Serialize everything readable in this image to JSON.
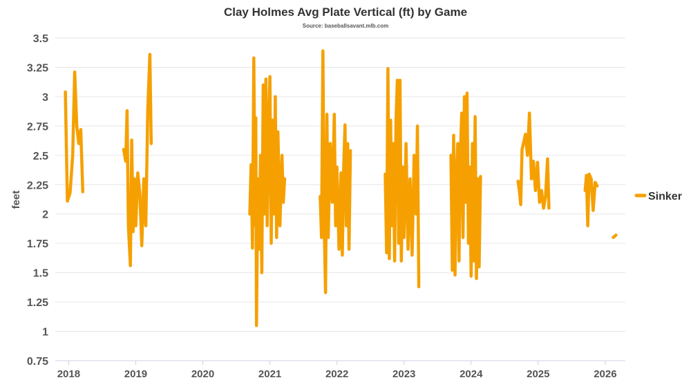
{
  "chart_data": {
    "type": "line",
    "title": "Clay Holmes Avg Plate Vertical (ft) by Game",
    "subtitle": "Source: baseballsavant.mlb.com",
    "xlabel": "",
    "ylabel": "feet",
    "ylim": [
      0.75,
      3.5
    ],
    "y_ticks": [
      "0.75",
      "1",
      "1.25",
      "1.5",
      "1.75",
      "2",
      "2.25",
      "2.5",
      "2.75",
      "3",
      "3.25",
      "3.5"
    ],
    "xlim": [
      2017.8,
      2026.3
    ],
    "x_ticks": [
      "2018",
      "2019",
      "2020",
      "2021",
      "2022",
      "2023",
      "2024",
      "2025",
      "2026"
    ],
    "grid": true,
    "legend_position": "right",
    "colors": {
      "series": "#f5a000",
      "grid": "#e6e6e6",
      "text": "#555555"
    },
    "series": [
      {
        "name": "Sinker",
        "segments": [
          [
            [
              2017.95,
              3.04
            ],
            [
              2017.98,
              2.11
            ],
            [
              2018.02,
              2.18
            ],
            [
              2018.06,
              2.5
            ],
            [
              2018.09,
              3.21
            ],
            [
              2018.12,
              2.75
            ],
            [
              2018.15,
              2.6
            ],
            [
              2018.18,
              2.72
            ],
            [
              2018.21,
              2.19
            ]
          ],
          [
            [
              2018.82,
              2.55
            ],
            [
              2018.85,
              2.45
            ],
            [
              2018.87,
              2.88
            ],
            [
              2018.89,
              1.9
            ],
            [
              2018.92,
              1.56
            ],
            [
              2018.94,
              2.63
            ],
            [
              2018.96,
              1.85
            ],
            [
              2018.98,
              2.3
            ],
            [
              2019.0,
              1.9
            ],
            [
              2019.03,
              2.35
            ],
            [
              2019.06,
              2.18
            ],
            [
              2019.09,
              1.73
            ],
            [
              2019.12,
              2.3
            ],
            [
              2019.15,
              1.9
            ],
            [
              2019.18,
              2.9
            ],
            [
              2019.21,
              3.36
            ],
            [
              2019.23,
              2.6
            ]
          ],
          [
            [
              2020.7,
              2.0
            ],
            [
              2020.72,
              2.42
            ],
            [
              2020.74,
              1.71
            ],
            [
              2020.76,
              3.33
            ],
            [
              2020.78,
              1.9
            ],
            [
              2020.79,
              2.82
            ],
            [
              2020.8,
              1.05
            ],
            [
              2020.82,
              2.3
            ],
            [
              2020.84,
              1.7
            ],
            [
              2020.86,
              2.5
            ],
            [
              2020.88,
              1.5
            ],
            [
              2020.9,
              3.1
            ],
            [
              2020.92,
              2.0
            ],
            [
              2020.94,
              3.15
            ],
            [
              2020.96,
              1.9
            ],
            [
              2020.98,
              2.7
            ],
            [
              2021.0,
              3.17
            ],
            [
              2021.02,
              1.75
            ],
            [
              2021.04,
              2.8
            ],
            [
              2021.06,
              2.0
            ],
            [
              2021.08,
              3.0
            ],
            [
              2021.1,
              1.8
            ],
            [
              2021.12,
              2.7
            ],
            [
              2021.15,
              1.9
            ],
            [
              2021.18,
              2.5
            ],
            [
              2021.2,
              2.1
            ],
            [
              2021.22,
              2.3
            ]
          ],
          [
            [
              2021.75,
              2.15
            ],
            [
              2021.77,
              1.8
            ],
            [
              2021.79,
              3.39
            ],
            [
              2021.81,
              1.9
            ],
            [
              2021.83,
              1.33
            ],
            [
              2021.85,
              2.85
            ],
            [
              2021.87,
              1.8
            ],
            [
              2021.9,
              2.6
            ],
            [
              2021.93,
              2.1
            ],
            [
              2021.96,
              2.85
            ],
            [
              2021.98,
              1.9
            ],
            [
              2022.0,
              2.4
            ],
            [
              2022.03,
              1.7
            ],
            [
              2022.06,
              2.35
            ],
            [
              2022.08,
              1.65
            ],
            [
              2022.1,
              2.4
            ],
            [
              2022.12,
              2.76
            ],
            [
              2022.14,
              1.9
            ],
            [
              2022.16,
              2.6
            ],
            [
              2022.18,
              1.7
            ],
            [
              2022.2,
              2.54
            ]
          ],
          [
            [
              2022.72,
              2.34
            ],
            [
              2022.74,
              1.67
            ],
            [
              2022.76,
              3.24
            ],
            [
              2022.78,
              1.62
            ],
            [
              2022.8,
              2.8
            ],
            [
              2022.82,
              1.9
            ],
            [
              2022.84,
              2.6
            ],
            [
              2022.86,
              1.6
            ],
            [
              2022.88,
              2.8
            ],
            [
              2022.9,
              3.14
            ],
            [
              2022.92,
              1.75
            ],
            [
              2022.94,
              3.14
            ],
            [
              2022.96,
              1.6
            ],
            [
              2022.98,
              2.4
            ],
            [
              2023.0,
              1.8
            ],
            [
              2023.03,
              2.6
            ],
            [
              2023.06,
              1.7
            ],
            [
              2023.09,
              2.3
            ],
            [
              2023.12,
              1.65
            ],
            [
              2023.15,
              2.5
            ],
            [
              2023.18,
              2.0
            ],
            [
              2023.2,
              2.75
            ],
            [
              2023.22,
              1.38
            ]
          ],
          [
            [
              2023.7,
              2.5
            ],
            [
              2023.72,
              1.52
            ],
            [
              2023.74,
              2.67
            ],
            [
              2023.76,
              1.48
            ],
            [
              2023.78,
              2.3
            ],
            [
              2023.8,
              2.6
            ],
            [
              2023.82,
              1.6
            ],
            [
              2023.84,
              2.5
            ],
            [
              2023.86,
              2.86
            ],
            [
              2023.88,
              1.8
            ],
            [
              2023.9,
              3.0
            ],
            [
              2023.92,
              2.1
            ],
            [
              2023.94,
              3.03
            ],
            [
              2023.96,
              1.75
            ],
            [
              2023.98,
              2.4
            ],
            [
              2024.0,
              1.47
            ],
            [
              2024.02,
              2.6
            ],
            [
              2024.04,
              1.6
            ],
            [
              2024.06,
              2.83
            ],
            [
              2024.08,
              1.45
            ],
            [
              2024.1,
              2.3
            ],
            [
              2024.12,
              1.55
            ],
            [
              2024.14,
              2.32
            ]
          ],
          [
            [
              2024.7,
              2.28
            ],
            [
              2024.72,
              2.2
            ],
            [
              2024.74,
              2.08
            ],
            [
              2024.76,
              2.55
            ],
            [
              2024.78,
              2.6
            ],
            [
              2024.81,
              2.68
            ],
            [
              2024.84,
              2.5
            ],
            [
              2024.87,
              2.86
            ],
            [
              2024.9,
              2.3
            ],
            [
              2024.93,
              2.45
            ],
            [
              2024.96,
              2.2
            ],
            [
              2024.99,
              2.44
            ],
            [
              2025.02,
              2.1
            ],
            [
              2025.05,
              2.2
            ],
            [
              2025.08,
              2.05
            ],
            [
              2025.11,
              2.15
            ],
            [
              2025.14,
              2.47
            ],
            [
              2025.16,
              2.05
            ]
          ],
          [
            [
              2025.7,
              2.2
            ],
            [
              2025.72,
              2.33
            ],
            [
              2025.74,
              1.9
            ],
            [
              2025.76,
              2.34
            ],
            [
              2025.79,
              2.3
            ],
            [
              2025.82,
              2.03
            ],
            [
              2025.85,
              2.27
            ],
            [
              2025.88,
              2.24
            ]
          ],
          [
            [
              2026.12,
              1.8
            ],
            [
              2026.16,
              1.82
            ]
          ]
        ]
      }
    ]
  }
}
